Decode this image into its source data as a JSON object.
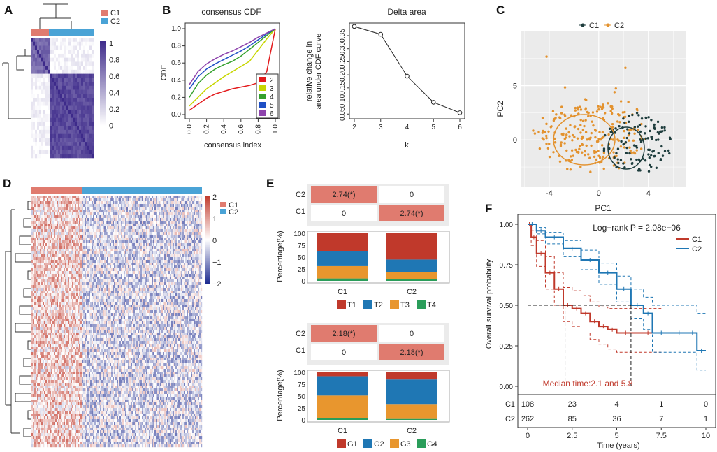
{
  "panel_labels": {
    "A": "A",
    "B": "B",
    "C": "C",
    "D": "D",
    "E": "E",
    "F": "F"
  },
  "colors": {
    "C1": "#e07b6f",
    "C2": "#4aa3d6",
    "heat_hi": "#3d2a8a",
    "red": "#c0392b",
    "blue": "#1f77b4",
    "orange": "#e8962e",
    "green": "#2a9d5a",
    "pca_c1": "#1e3d3d",
    "pca_c2": "#e3922e"
  },
  "chart_data": [
    {
      "id": "A",
      "type": "heatmap",
      "legend": {
        "items": [
          "C1",
          "C2"
        ]
      },
      "colorbar": {
        "ticks": [
          "1",
          "0.8",
          "0.6",
          "0.4",
          "0.2",
          "0"
        ]
      }
    },
    {
      "id": "B1",
      "type": "line",
      "title": "consensus CDF",
      "xlabel": "consensus index",
      "ylabel": "CDF",
      "xlim": [
        0,
        1
      ],
      "ylim": [
        0,
        1
      ],
      "xticks": [
        "0.0",
        "0.2",
        "0.4",
        "0.6",
        "0.8",
        "1.0"
      ],
      "yticks": [
        "0.0",
        "0.2",
        "0.4",
        "0.6",
        "0.8",
        "1.0"
      ],
      "x": [
        0,
        0.1,
        0.2,
        0.3,
        0.4,
        0.5,
        0.6,
        0.7,
        0.8,
        0.9,
        1.0
      ],
      "series": [
        {
          "name": "2",
          "color": "#e31a1c",
          "values": [
            0.05,
            0.12,
            0.19,
            0.24,
            0.27,
            0.3,
            0.32,
            0.34,
            0.37,
            0.5,
            1.0
          ]
        },
        {
          "name": "3",
          "color": "#c7d600",
          "values": [
            0.1,
            0.2,
            0.3,
            0.37,
            0.44,
            0.5,
            0.56,
            0.62,
            0.75,
            0.88,
            1.0
          ]
        },
        {
          "name": "4",
          "color": "#33a02c",
          "values": [
            0.2,
            0.36,
            0.46,
            0.53,
            0.58,
            0.62,
            0.68,
            0.76,
            0.84,
            0.92,
            1.0
          ]
        },
        {
          "name": "5",
          "color": "#1f4fc4",
          "values": [
            0.3,
            0.44,
            0.53,
            0.59,
            0.64,
            0.69,
            0.74,
            0.8,
            0.87,
            0.94,
            1.0
          ]
        },
        {
          "name": "6",
          "color": "#8e44ad",
          "values": [
            0.35,
            0.5,
            0.59,
            0.65,
            0.7,
            0.74,
            0.79,
            0.84,
            0.9,
            0.95,
            1.0
          ]
        }
      ]
    },
    {
      "id": "B2",
      "type": "line",
      "title": "Delta area",
      "xlabel": "k",
      "ylabel_lines": [
        "relative change in",
        "area under CDF curve"
      ],
      "xlim": [
        2,
        6
      ],
      "ylim": [
        0.04,
        0.39
      ],
      "xticks": [
        "2",
        "3",
        "4",
        "5",
        "6"
      ],
      "yticks": [
        "0.05",
        "0.10",
        "0.15",
        "0.20",
        "0.25",
        "0.30",
        "0.35"
      ],
      "x": [
        2,
        3,
        4,
        5,
        6
      ],
      "values": [
        0.385,
        0.355,
        0.195,
        0.095,
        0.055
      ]
    },
    {
      "id": "C",
      "type": "scatter",
      "xlabel": "PC1",
      "ylabel": "PC2",
      "xlim": [
        -6.3,
        7
      ],
      "ylim": [
        -4.3,
        10
      ],
      "xticks": [
        "-4",
        "0",
        "4"
      ],
      "yticks": [
        "0",
        "5"
      ],
      "legend": [
        "C1",
        "C2"
      ]
    },
    {
      "id": "D",
      "type": "heatmap",
      "legend": [
        "C1",
        "C2"
      ],
      "colorbar": {
        "ticks": [
          "2",
          "1",
          "0",
          "−1",
          "−2"
        ]
      }
    },
    {
      "id": "E1",
      "type": "bar",
      "grid_rows": [
        "C2",
        "C1"
      ],
      "grid_cells": [
        [
          "2.74(*)",
          "0"
        ],
        [
          "0",
          "2.74(*)"
        ]
      ],
      "categories": [
        "C1",
        "C2"
      ],
      "ylabel": "Percentage(%)",
      "yticks": [
        "100",
        "75",
        "50",
        "25",
        "0"
      ],
      "legend": [
        "T1",
        "T2",
        "T3",
        "T4"
      ],
      "series": [
        {
          "name": "T4",
          "color": "#2a9d5a",
          "values": [
            5,
            3
          ]
        },
        {
          "name": "T3",
          "color": "#e8962e",
          "values": [
            26,
            15
          ]
        },
        {
          "name": "T2",
          "color": "#1f77b4",
          "values": [
            31,
            27
          ]
        },
        {
          "name": "T1",
          "color": "#c0392b",
          "values": [
            38,
            55
          ]
        }
      ]
    },
    {
      "id": "E2",
      "type": "bar",
      "grid_rows": [
        "C2",
        "C1"
      ],
      "grid_cells": [
        [
          "2.18(*)",
          "0"
        ],
        [
          "0",
          "2.18(*)"
        ]
      ],
      "categories": [
        "C1",
        "C2"
      ],
      "ylabel": "Percentage(%)",
      "yticks": [
        "100",
        "75",
        "50",
        "25",
        "0"
      ],
      "legend": [
        "G1",
        "G2",
        "G3",
        "G4"
      ],
      "series": [
        {
          "name": "G4",
          "color": "#2a9d5a",
          "values": [
            4,
            2
          ]
        },
        {
          "name": "G3",
          "color": "#e8962e",
          "values": [
            47,
            30
          ]
        },
        {
          "name": "G2",
          "color": "#1f77b4",
          "values": [
            41,
            53
          ]
        },
        {
          "name": "G1",
          "color": "#c0392b",
          "values": [
            8,
            15
          ]
        }
      ]
    },
    {
      "id": "F",
      "type": "line",
      "xlabel": "Time (years)",
      "ylabel": "Overall survival probability",
      "xlim": [
        0,
        10
      ],
      "ylim": [
        0,
        1
      ],
      "xticks": [
        "0",
        "2.5",
        "5",
        "7.5",
        "10"
      ],
      "yticks": [
        "1.00",
        "0.75",
        "0.50",
        "0.25",
        "0.00"
      ],
      "annotation": "Log−rank P = 2.08e−06",
      "median_text": "Median time:2.1 and 5.8",
      "legend": [
        "C1",
        "C2"
      ],
      "series": [
        {
          "name": "C1",
          "color": "#c0392b",
          "x": [
            0,
            0.2,
            0.5,
            1,
            1.5,
            2,
            2.5,
            3,
            3.5,
            4,
            4.5,
            5,
            6,
            7.5
          ],
          "values": [
            1,
            0.92,
            0.82,
            0.7,
            0.6,
            0.5,
            0.48,
            0.45,
            0.4,
            0.37,
            0.35,
            0.33,
            0.33,
            0.33
          ],
          "upper": [
            1,
            0.96,
            0.9,
            0.8,
            0.7,
            0.61,
            0.59,
            0.56,
            0.52,
            0.49,
            0.48,
            0.48,
            0.48,
            0.48
          ],
          "lower": [
            1,
            0.87,
            0.74,
            0.6,
            0.5,
            0.4,
            0.37,
            0.33,
            0.29,
            0.26,
            0.23,
            0.21,
            0.21,
            0.21
          ]
        },
        {
          "name": "C2",
          "color": "#1f77b4",
          "x": [
            0,
            0.5,
            1,
            2,
            3,
            4,
            5,
            5.8,
            6.5,
            7,
            8,
            9,
            9.5,
            10
          ],
          "values": [
            1,
            0.96,
            0.92,
            0.85,
            0.78,
            0.7,
            0.6,
            0.5,
            0.45,
            0.33,
            0.33,
            0.33,
            0.22,
            0.22
          ],
          "upper": [
            1,
            0.98,
            0.95,
            0.9,
            0.84,
            0.76,
            0.68,
            0.6,
            0.55,
            0.5,
            0.5,
            0.5,
            0.45,
            0.45
          ],
          "lower": [
            1,
            0.94,
            0.88,
            0.8,
            0.72,
            0.63,
            0.52,
            0.42,
            0.35,
            0.21,
            0.21,
            0.21,
            0.1,
            0.1
          ]
        }
      ],
      "risk_table": {
        "rows": [
          {
            "name": "C1",
            "values": [
              "108",
              "23",
              "4",
              "1",
              "0"
            ]
          },
          {
            "name": "C2",
            "values": [
              "262",
              "85",
              "36",
              "7",
              "1"
            ]
          }
        ]
      }
    }
  ]
}
